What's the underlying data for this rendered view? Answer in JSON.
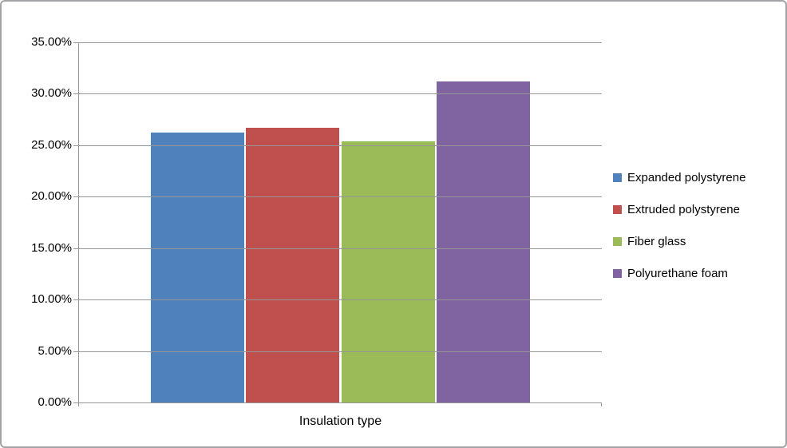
{
  "chart_data": {
    "type": "bar",
    "title": "",
    "xlabel": "",
    "ylabel": "",
    "categories": [
      "Insulation type"
    ],
    "series": [
      {
        "name": "Expanded polystyrene",
        "color": "#4F81BD",
        "values": [
          26.2
        ]
      },
      {
        "name": "Extruded polystyrene",
        "color": "#C0504D",
        "values": [
          26.7
        ]
      },
      {
        "name": "Fiber glass",
        "color": "#9BBB59",
        "values": [
          25.4
        ]
      },
      {
        "name": "Polyurethane foam",
        "color": "#8064A2",
        "values": [
          31.2
        ]
      }
    ],
    "ylim": [
      0,
      35
    ],
    "y_tick_step": 5,
    "y_tick_labels": [
      "35.00%",
      "30.00%",
      "25.00%",
      "20.00%",
      "15.00%",
      "10.00%",
      "5.00%",
      "0.00%"
    ],
    "grid": true,
    "legend_position": "right"
  },
  "colors": {
    "gridline": "#969696",
    "axis": "#969696",
    "border": "#A3A3A7",
    "text": "#000000",
    "background": "#FFFFFF"
  }
}
